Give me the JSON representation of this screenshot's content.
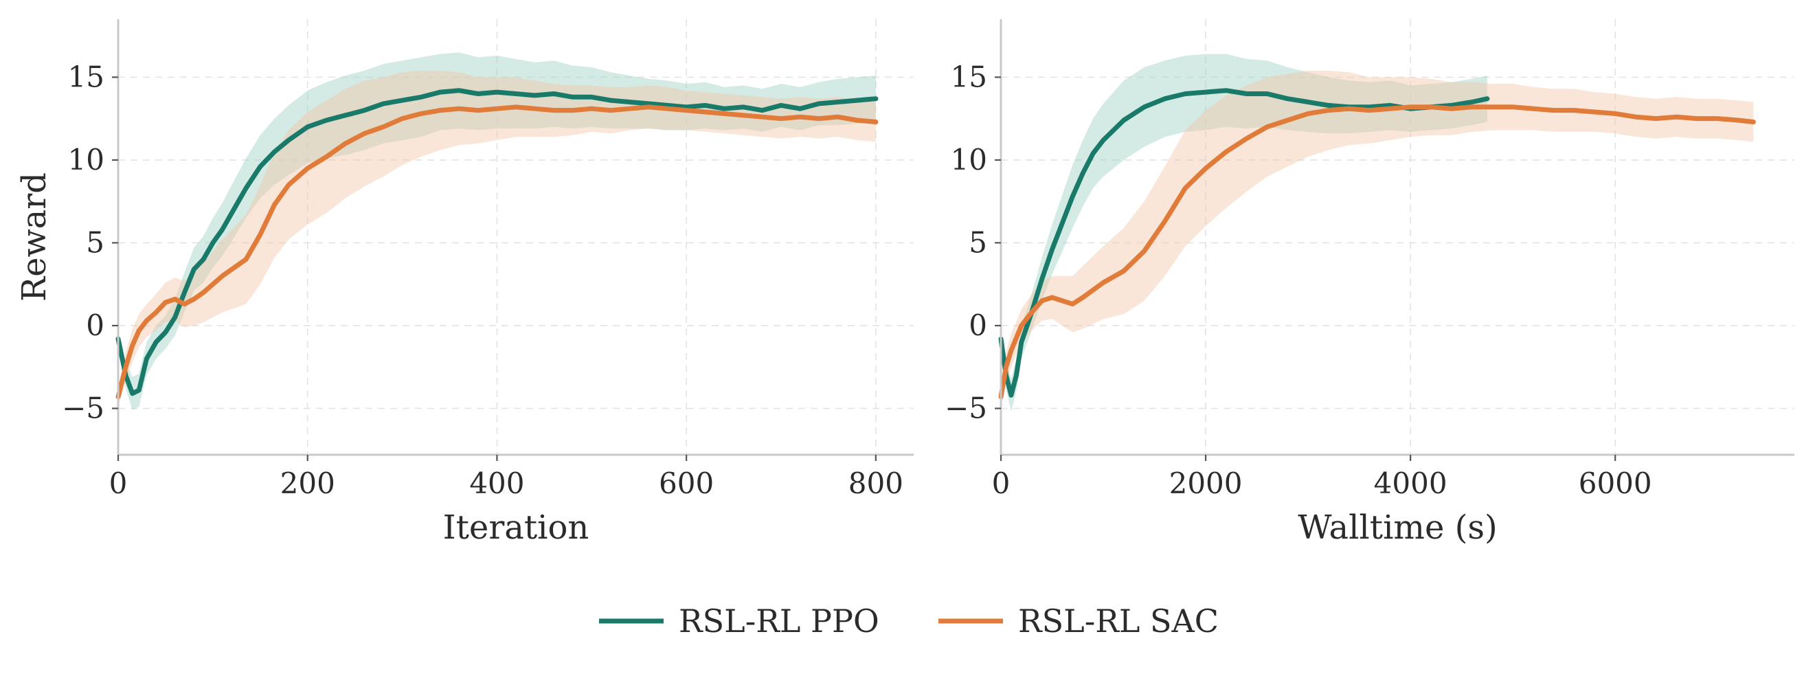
{
  "chart_data": [
    {
      "type": "line",
      "xlabel": "Iteration",
      "ylabel": "Reward",
      "xlim": [
        0,
        840
      ],
      "ylim": [
        -7.8,
        18.5
      ],
      "xticks": [
        0,
        200,
        400,
        600,
        800
      ],
      "yticks": [
        -5,
        0,
        5,
        10,
        15
      ],
      "xtick_labels": [
        "0",
        "200",
        "400",
        "600",
        "800"
      ],
      "ytick_labels": [
        "−5",
        "0",
        "5",
        "10",
        "15"
      ],
      "grid": true,
      "series": [
        {
          "name": "RSL-RL PPO",
          "color": "#1a7a6a",
          "band_color": "#9fd1c3",
          "x": [
            0,
            8,
            15,
            22,
            30,
            40,
            50,
            60,
            70,
            80,
            90,
            100,
            110,
            120,
            135,
            150,
            165,
            180,
            200,
            220,
            240,
            260,
            280,
            300,
            320,
            340,
            360,
            380,
            400,
            420,
            440,
            460,
            480,
            500,
            520,
            540,
            560,
            580,
            600,
            620,
            640,
            660,
            680,
            700,
            720,
            740,
            760,
            780,
            800
          ],
          "y": [
            -0.8,
            -3.0,
            -4.1,
            -3.9,
            -2.0,
            -1.0,
            -0.4,
            0.5,
            2.0,
            3.4,
            4.0,
            5.0,
            5.8,
            6.8,
            8.3,
            9.6,
            10.5,
            11.2,
            12.0,
            12.4,
            12.7,
            13.0,
            13.4,
            13.6,
            13.8,
            14.1,
            14.2,
            14.0,
            14.1,
            14.0,
            13.9,
            14.0,
            13.8,
            13.8,
            13.6,
            13.5,
            13.4,
            13.3,
            13.2,
            13.3,
            13.1,
            13.2,
            13.0,
            13.3,
            13.1,
            13.4,
            13.5,
            13.6,
            13.7
          ],
          "spread": [
            0.5,
            0.8,
            1.0,
            1.0,
            1.0,
            1.0,
            1.0,
            1.1,
            1.2,
            1.3,
            1.4,
            1.5,
            1.6,
            1.7,
            1.8,
            1.9,
            2.0,
            2.1,
            2.2,
            2.3,
            2.4,
            2.4,
            2.4,
            2.4,
            2.4,
            2.3,
            2.3,
            2.2,
            2.2,
            2.1,
            2.0,
            2.0,
            1.9,
            1.8,
            1.7,
            1.6,
            1.5,
            1.5,
            1.4,
            1.4,
            1.3,
            1.3,
            1.3,
            1.3,
            1.3,
            1.3,
            1.4,
            1.4,
            1.4
          ]
        },
        {
          "name": "RSL-RL SAC",
          "color": "#e07b39",
          "band_color": "#f5c8a8",
          "x": [
            0,
            8,
            15,
            22,
            30,
            40,
            50,
            60,
            70,
            80,
            90,
            100,
            110,
            120,
            135,
            150,
            165,
            180,
            200,
            220,
            240,
            260,
            280,
            300,
            320,
            340,
            360,
            380,
            400,
            420,
            440,
            460,
            480,
            500,
            520,
            540,
            560,
            580,
            600,
            620,
            640,
            660,
            680,
            700,
            720,
            740,
            760,
            780,
            800
          ],
          "y": [
            -4.3,
            -2.5,
            -1.2,
            -0.3,
            0.3,
            0.8,
            1.4,
            1.6,
            1.3,
            1.6,
            2.0,
            2.5,
            3.0,
            3.4,
            4.0,
            5.5,
            7.3,
            8.5,
            9.5,
            10.2,
            11.0,
            11.6,
            12.0,
            12.5,
            12.8,
            13.0,
            13.1,
            13.0,
            13.1,
            13.2,
            13.1,
            13.0,
            13.0,
            13.1,
            13.0,
            13.1,
            13.2,
            13.1,
            13.0,
            12.9,
            12.8,
            12.7,
            12.6,
            12.5,
            12.6,
            12.5,
            12.6,
            12.4,
            12.3
          ],
          "spread": [
            0.6,
            0.9,
            1.0,
            1.0,
            1.0,
            1.1,
            1.2,
            1.3,
            1.4,
            1.6,
            1.8,
            2.0,
            2.2,
            2.4,
            2.7,
            3.0,
            3.2,
            3.3,
            3.4,
            3.4,
            3.3,
            3.2,
            3.0,
            2.8,
            2.6,
            2.4,
            2.2,
            2.0,
            1.9,
            1.8,
            1.7,
            1.6,
            1.5,
            1.4,
            1.4,
            1.3,
            1.3,
            1.3,
            1.2,
            1.2,
            1.2,
            1.2,
            1.2,
            1.2,
            1.2,
            1.2,
            1.2,
            1.2,
            1.2
          ]
        }
      ]
    },
    {
      "type": "line",
      "xlabel": "Walltime (s)",
      "ylabel": "",
      "xlim": [
        0,
        7750
      ],
      "ylim": [
        -7.8,
        18.5
      ],
      "xticks": [
        0,
        2000,
        4000,
        6000
      ],
      "yticks": [
        -5,
        0,
        5,
        10,
        15
      ],
      "xtick_labels": [
        "0",
        "2000",
        "4000",
        "6000"
      ],
      "ytick_labels": [
        "−5",
        "0",
        "5",
        "10",
        "15"
      ],
      "grid": true,
      "series": [
        {
          "name": "RSL-RL PPO",
          "color": "#1a7a6a",
          "band_color": "#9fd1c3",
          "x": [
            0,
            50,
            100,
            150,
            200,
            300,
            400,
            500,
            600,
            700,
            800,
            900,
            1000,
            1100,
            1200,
            1400,
            1600,
            1800,
            2000,
            2200,
            2400,
            2600,
            2800,
            3000,
            3200,
            3400,
            3600,
            3800,
            4000,
            4200,
            4400,
            4600,
            4750
          ],
          "y": [
            -0.8,
            -3.0,
            -4.2,
            -3.0,
            -1.0,
            0.8,
            2.8,
            4.6,
            6.2,
            7.8,
            9.2,
            10.4,
            11.2,
            11.8,
            12.4,
            13.2,
            13.7,
            14.0,
            14.1,
            14.2,
            14.0,
            14.0,
            13.7,
            13.5,
            13.3,
            13.2,
            13.2,
            13.3,
            13.1,
            13.2,
            13.3,
            13.5,
            13.7
          ],
          "spread": [
            0.5,
            0.8,
            1.0,
            1.0,
            1.0,
            1.1,
            1.3,
            1.5,
            1.7,
            1.9,
            2.0,
            2.1,
            2.2,
            2.3,
            2.4,
            2.4,
            2.3,
            2.3,
            2.3,
            2.2,
            2.1,
            2.0,
            1.9,
            1.8,
            1.7,
            1.6,
            1.5,
            1.5,
            1.4,
            1.4,
            1.4,
            1.4,
            1.4
          ]
        },
        {
          "name": "RSL-RL SAC",
          "color": "#e07b39",
          "band_color": "#f5c8a8",
          "x": [
            0,
            50,
            100,
            200,
            300,
            400,
            500,
            600,
            700,
            800,
            1000,
            1200,
            1400,
            1600,
            1800,
            2000,
            2200,
            2400,
            2600,
            2800,
            3000,
            3200,
            3400,
            3600,
            3800,
            4000,
            4200,
            4400,
            4600,
            4800,
            5000,
            5200,
            5400,
            5600,
            5800,
            6000,
            6200,
            6400,
            6600,
            6800,
            7000,
            7200,
            7350
          ],
          "y": [
            -4.3,
            -2.5,
            -1.5,
            0.0,
            0.8,
            1.5,
            1.7,
            1.5,
            1.3,
            1.7,
            2.6,
            3.3,
            4.5,
            6.3,
            8.3,
            9.5,
            10.5,
            11.3,
            12.0,
            12.4,
            12.8,
            13.0,
            13.1,
            13.0,
            13.1,
            13.2,
            13.2,
            13.1,
            13.2,
            13.2,
            13.2,
            13.1,
            13.0,
            13.0,
            12.9,
            12.8,
            12.6,
            12.5,
            12.6,
            12.5,
            12.5,
            12.4,
            12.3
          ],
          "spread": [
            0.6,
            0.9,
            1.0,
            1.0,
            1.1,
            1.2,
            1.3,
            1.5,
            1.7,
            1.9,
            2.2,
            2.6,
            3.0,
            3.3,
            3.5,
            3.5,
            3.4,
            3.2,
            3.0,
            2.8,
            2.6,
            2.4,
            2.2,
            2.0,
            1.9,
            1.8,
            1.7,
            1.6,
            1.5,
            1.4,
            1.4,
            1.3,
            1.3,
            1.3,
            1.2,
            1.2,
            1.2,
            1.2,
            1.2,
            1.2,
            1.2,
            1.2,
            1.2
          ]
        }
      ]
    }
  ],
  "legend": {
    "placement": "bottom-center",
    "items": [
      {
        "label": "RSL-RL PPO",
        "color": "#1a7a6a"
      },
      {
        "label": "RSL-RL SAC",
        "color": "#e07b39"
      }
    ]
  }
}
